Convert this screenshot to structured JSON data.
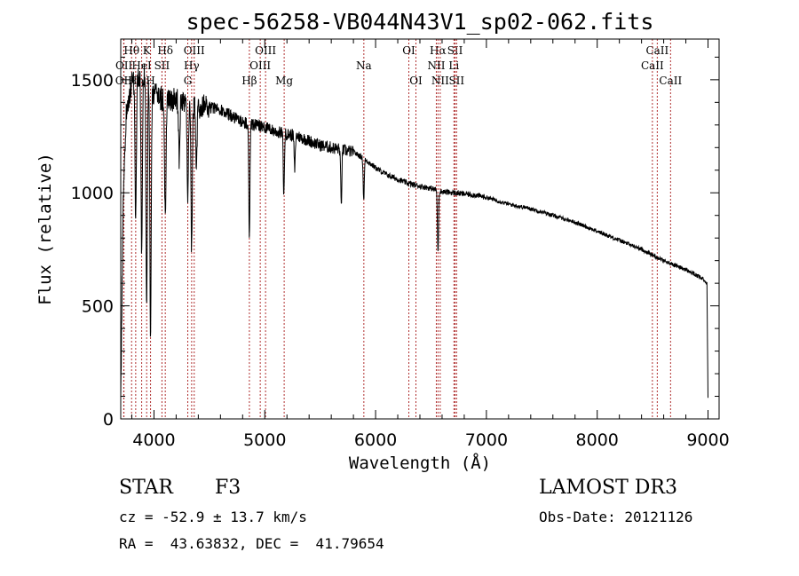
{
  "chart_data": {
    "type": "line",
    "title": "spec-56258-VB044N43V1_sp02-062.fits",
    "xlabel": "Wavelength (Å)",
    "ylabel": "Flux (relative)",
    "xlim": [
      3700,
      9100
    ],
    "ylim": [
      0,
      1680
    ],
    "x_ticks": [
      4000,
      5000,
      6000,
      7000,
      8000,
      9000
    ],
    "y_ticks": [
      0,
      500,
      1000,
      1500
    ],
    "series": [
      {
        "name": "spectrum",
        "continuum_x": [
          3700,
          3720,
          3750,
          3800,
          3850,
          3900,
          3950,
          4000,
          4050,
          4100,
          4150,
          4200,
          4250,
          4300,
          4350,
          4400,
          4500,
          4600,
          4700,
          4800,
          4900,
          5000,
          5100,
          5200,
          5300,
          5400,
          5500,
          5600,
          5700,
          5800,
          5900,
          6000,
          6100,
          6200,
          6300,
          6400,
          6500,
          6600,
          6700,
          6800,
          6900,
          7000,
          7200,
          7400,
          7600,
          7800,
          8000,
          8200,
          8400,
          8600,
          8800,
          8950,
          8990,
          9000
        ],
        "continuum_y": [
          50,
          900,
          1350,
          1480,
          1520,
          1530,
          1490,
          1440,
          1420,
          1410,
          1410,
          1420,
          1400,
          1390,
          1380,
          1380,
          1380,
          1370,
          1340,
          1310,
          1300,
          1290,
          1270,
          1260,
          1250,
          1230,
          1210,
          1200,
          1190,
          1180,
          1150,
          1110,
          1080,
          1060,
          1040,
          1030,
          1020,
          1005,
          1000,
          995,
          990,
          980,
          950,
          930,
          900,
          870,
          830,
          790,
          750,
          700,
          660,
          620,
          600,
          100
        ],
        "absorption_lines": [
          {
            "x": 3835,
            "depth": 600
          },
          {
            "x": 3889,
            "depth": 800
          },
          {
            "x": 3934,
            "depth": 1050
          },
          {
            "x": 3969,
            "depth": 1150
          },
          {
            "x": 4102,
            "depth": 500
          },
          {
            "x": 4227,
            "depth": 250
          },
          {
            "x": 4305,
            "depth": 420
          },
          {
            "x": 4340,
            "depth": 650
          },
          {
            "x": 4383,
            "depth": 250
          },
          {
            "x": 4861,
            "depth": 520
          },
          {
            "x": 5172,
            "depth": 280
          },
          {
            "x": 5270,
            "depth": 150
          },
          {
            "x": 5690,
            "depth": 250
          },
          {
            "x": 5893,
            "depth": 180
          },
          {
            "x": 6563,
            "depth": 280
          }
        ]
      }
    ],
    "line_markers": [
      {
        "label": "OII",
        "x": 3727,
        "row": 3
      },
      {
        "label": "OII",
        "x": 3729,
        "row": 2
      },
      {
        "label": "Hθ",
        "x": 3798,
        "row": 1
      },
      {
        "label": "Hη",
        "x": 3835,
        "row": 3
      },
      {
        "label": "HeI",
        "x": 3889,
        "row": 2
      },
      {
        "label": "K",
        "x": 3934,
        "row": 1
      },
      {
        "label": "H",
        "x": 3969,
        "row": 3
      },
      {
        "label": "Hδ",
        "x": 4102,
        "row": 1
      },
      {
        "label": "SII",
        "x": 4072,
        "row": 2
      },
      {
        "label": "OIII",
        "x": 4363,
        "row": 1
      },
      {
        "label": "Hγ",
        "x": 4340,
        "row": 2
      },
      {
        "label": "G",
        "x": 4305,
        "row": 3
      },
      {
        "label": "Hβ",
        "x": 4861,
        "row": 3
      },
      {
        "label": "OIII",
        "x": 5007,
        "row": 1
      },
      {
        "label": "OIII",
        "x": 4959,
        "row": 2
      },
      {
        "label": "Mg",
        "x": 5175,
        "row": 3
      },
      {
        "label": "Na",
        "x": 5894,
        "row": 2
      },
      {
        "label": "OI",
        "x": 6300,
        "row": 1
      },
      {
        "label": "OI",
        "x": 6364,
        "row": 3
      },
      {
        "label": "Hα",
        "x": 6563,
        "row": 1
      },
      {
        "label": "NII",
        "x": 6548,
        "row": 2
      },
      {
        "label": "NII",
        "x": 6583,
        "row": 3
      },
      {
        "label": "SII",
        "x": 6717,
        "row": 1
      },
      {
        "label": "Li",
        "x": 6707,
        "row": 2
      },
      {
        "label": "SII",
        "x": 6731,
        "row": 3
      },
      {
        "label": "CaII",
        "x": 8542,
        "row": 1
      },
      {
        "label": "CaII",
        "x": 8498,
        "row": 2
      },
      {
        "label": "CaII",
        "x": 8662,
        "row": 3
      }
    ]
  },
  "info": {
    "class_label": "STAR",
    "subclass": "F3",
    "survey": "LAMOST DR3",
    "redshift_text": "cz = -52.9 ± 13.7 km/s",
    "obs_date_text": "Obs-Date: 20121126",
    "coords_text": "RA =  43.63832, DEC =  41.79654"
  },
  "colors": {
    "marker": "#b03030",
    "axis": "#000000",
    "spectrum": "#000000"
  }
}
